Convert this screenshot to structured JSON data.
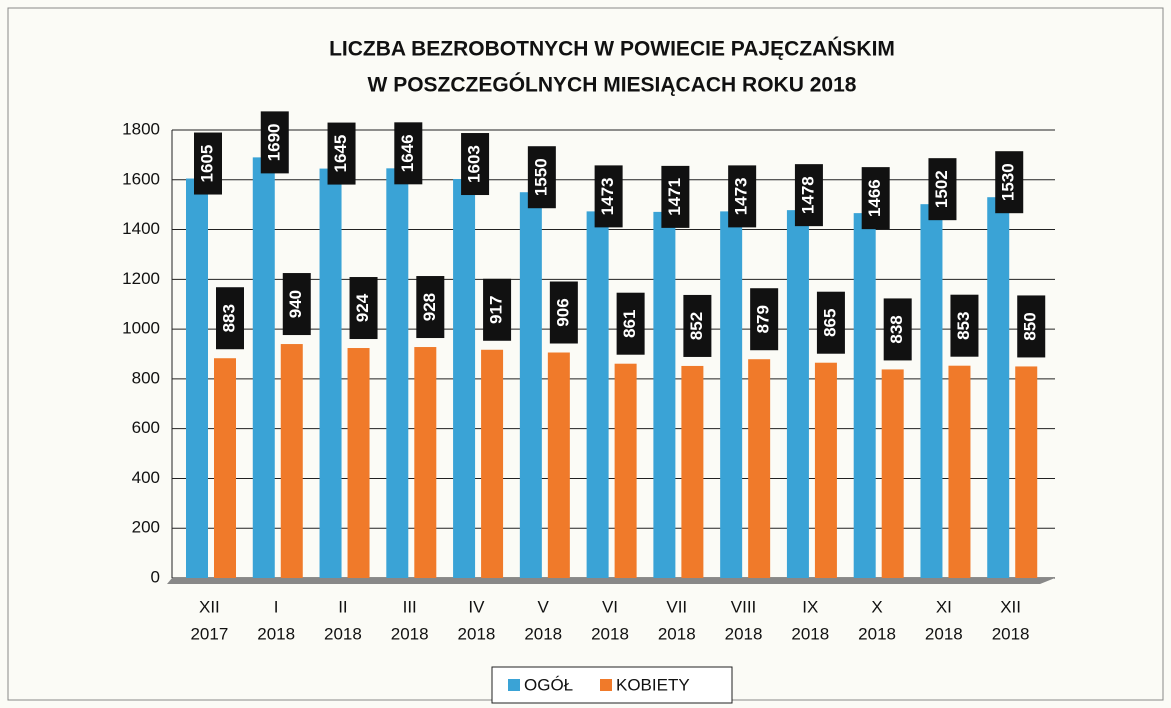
{
  "chart_data": {
    "type": "bar",
    "title": [
      "LICZBA BEZROBOTNYCH W POWIECIE PAJĘCZAŃSKIM",
      "W POSZCZEGÓLNYCH MIESIĄCACH ROKU 2018"
    ],
    "categories": [
      [
        "XII",
        "2017"
      ],
      [
        "I",
        "2018"
      ],
      [
        "II",
        "2018"
      ],
      [
        "III",
        "2018"
      ],
      [
        "IV",
        "2018"
      ],
      [
        "V",
        "2018"
      ],
      [
        "VI",
        "2018"
      ],
      [
        "VII",
        "2018"
      ],
      [
        "VIII",
        "2018"
      ],
      [
        "IX",
        "2018"
      ],
      [
        "X",
        "2018"
      ],
      [
        "XI",
        "2018"
      ],
      [
        "XII",
        "2018"
      ]
    ],
    "series": [
      {
        "name": "OGÓŁ",
        "color": "#3aa3d6",
        "values": [
          1605,
          1690,
          1645,
          1646,
          1603,
          1550,
          1473,
          1471,
          1473,
          1478,
          1466,
          1502,
          1530
        ]
      },
      {
        "name": "KOBIETY",
        "color": "#f07a2a",
        "values": [
          883,
          940,
          924,
          928,
          917,
          906,
          861,
          852,
          879,
          865,
          838,
          853,
          850
        ]
      }
    ],
    "ylim": [
      0,
      1800
    ],
    "yticks": [
      0,
      200,
      400,
      600,
      800,
      1000,
      1200,
      1400,
      1600,
      1800
    ],
    "grid": true
  }
}
